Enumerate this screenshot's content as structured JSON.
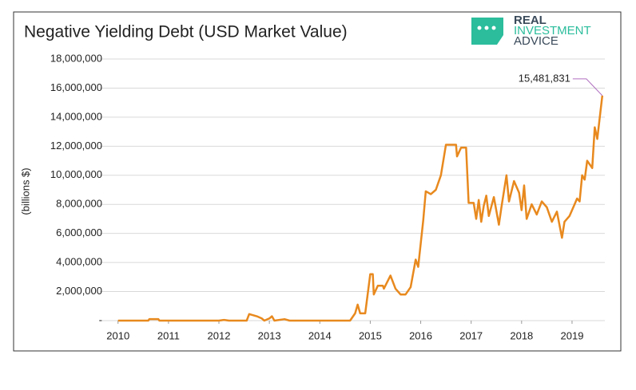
{
  "logo": [
    "REAL",
    "INVESTMENT",
    "ADVICE"
  ],
  "chart_data": {
    "type": "line",
    "title": "Negative Yielding Debt (USD Market Value)",
    "y_label": "(billions $)",
    "color": "#e8891e",
    "grid": true,
    "x": [
      2010.0,
      2010.6,
      2010.62,
      2010.8,
      2010.82,
      2012.0,
      2012.1,
      2012.2,
      2012.55,
      2012.6,
      2012.75,
      2012.85,
      2012.9,
      2013.0,
      2013.05,
      2013.1,
      2013.3,
      2013.4,
      2014.6,
      2014.7,
      2014.75,
      2014.8,
      2014.9,
      2015.0,
      2015.05,
      2015.07,
      2015.15,
      2015.25,
      2015.27,
      2015.4,
      2015.5,
      2015.6,
      2015.7,
      2015.8,
      2015.9,
      2015.95,
      2016.05,
      2016.1,
      2016.2,
      2016.3,
      2016.4,
      2016.5,
      2016.7,
      2016.72,
      2016.8,
      2016.9,
      2016.95,
      2017.05,
      2017.1,
      2017.15,
      2017.2,
      2017.25,
      2017.3,
      2017.35,
      2017.45,
      2017.55,
      2017.6,
      2017.7,
      2017.75,
      2017.85,
      2017.95,
      2018.0,
      2018.05,
      2018.1,
      2018.2,
      2018.3,
      2018.4,
      2018.5,
      2018.6,
      2018.7,
      2018.75,
      2018.8,
      2018.85,
      2018.95,
      2019.05,
      2019.1,
      2019.15,
      2019.2,
      2019.25,
      2019.3,
      2019.4,
      2019.45,
      2019.5,
      2019.55,
      2019.6
    ],
    "values": [
      0,
      0,
      100000,
      100000,
      0,
      0,
      50000,
      0,
      0,
      450000,
      300000,
      150000,
      0,
      150000,
      300000,
      0,
      100000,
      0,
      0,
      500000,
      1100000,
      500000,
      500000,
      3200000,
      3200000,
      1800000,
      2400000,
      2400000,
      2200000,
      3100000,
      2200000,
      1800000,
      1800000,
      2300000,
      4200000,
      3700000,
      6900000,
      8900000,
      8700000,
      9000000,
      10000000,
      12100000,
      12100000,
      11300000,
      11900000,
      11900000,
      8100000,
      8100000,
      7000000,
      8300000,
      6800000,
      7900000,
      8600000,
      7200000,
      8500000,
      6600000,
      7800000,
      10000000,
      8200000,
      9600000,
      8800000,
      7600000,
      9300000,
      7000000,
      8000000,
      7300000,
      8200000,
      7800000,
      6800000,
      7500000,
      6600000,
      5700000,
      6800000,
      7200000,
      8000000,
      8400000,
      8200000,
      10000000,
      9700000,
      11000000,
      10500000,
      13300000,
      12500000,
      14000000,
      15481831
    ],
    "value_labels": [
      null,
      null,
      null,
      null,
      null,
      null,
      null,
      null,
      null,
      null,
      null,
      null,
      null,
      null,
      null,
      null,
      null,
      null,
      null,
      null,
      null,
      null,
      null,
      null,
      null,
      null,
      null,
      null,
      null,
      null,
      null,
      null,
      null,
      null,
      null,
      null,
      null,
      null,
      null,
      null,
      null,
      null,
      null,
      null,
      null,
      null,
      null,
      null,
      null,
      null,
      null,
      null,
      null,
      null,
      null,
      null,
      null,
      null,
      null,
      null,
      null,
      null,
      null,
      null,
      null,
      null,
      null,
      null,
      null,
      null,
      null,
      null,
      null,
      null,
      null,
      null,
      null,
      null,
      null,
      null,
      null,
      null,
      null,
      null,
      "15,481,831"
    ],
    "xlim": [
      2009.64,
      2019.65
    ],
    "xticks": [
      2010,
      2011,
      2012,
      2013,
      2014,
      2015,
      2016,
      2017,
      2018,
      2019
    ],
    "ylim": [
      0,
      18000000
    ],
    "yticks": [
      {
        "value": 0,
        "label": "-"
      },
      {
        "value": 2000000,
        "label": "2,000,000"
      },
      {
        "value": 4000000,
        "label": "4,000,000"
      },
      {
        "value": 6000000,
        "label": "6,000,000"
      },
      {
        "value": 8000000,
        "label": "8,000,000"
      },
      {
        "value": 10000000,
        "label": "10,000,000"
      },
      {
        "value": 12000000,
        "label": "12,000,000"
      },
      {
        "value": 14000000,
        "label": "14,000,000"
      },
      {
        "value": 16000000,
        "label": "16,000,000"
      },
      {
        "value": 18000000,
        "label": "18,000,000"
      }
    ]
  }
}
